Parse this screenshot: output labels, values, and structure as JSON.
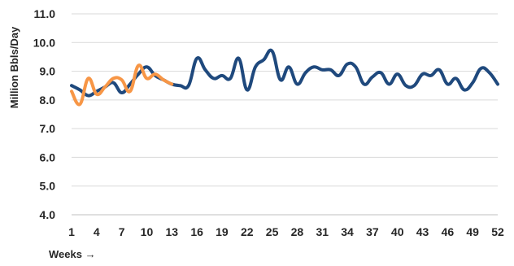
{
  "chart_data": {
    "type": "line",
    "xlabel": "Weeks →",
    "ylabel": "Million Bbls/Day",
    "ylim": [
      4.0,
      11.0
    ],
    "xlim": [
      1,
      52
    ],
    "y_ticks": [
      "4.0",
      "5.0",
      "6.0",
      "7.0",
      "8.0",
      "9.0",
      "10.0",
      "11.0"
    ],
    "x_ticks": [
      "1",
      "4",
      "7",
      "10",
      "13",
      "16",
      "19",
      "22",
      "25",
      "28",
      "31",
      "34",
      "37",
      "40",
      "43",
      "46",
      "49",
      "52"
    ],
    "grid": "horizontal",
    "legend": "none",
    "series": [
      {
        "color": "#1f497d",
        "x": [
          1,
          2,
          3,
          4,
          5,
          6,
          7,
          8,
          9,
          10,
          11,
          12,
          13,
          14,
          15,
          16,
          17,
          18,
          19,
          20,
          21,
          22,
          23,
          24,
          25,
          26,
          27,
          28,
          29,
          30,
          31,
          32,
          33,
          34,
          35,
          36,
          37,
          38,
          39,
          40,
          41,
          42,
          43,
          44,
          45,
          46,
          47,
          48,
          49,
          50,
          51,
          52
        ],
        "values": [
          8.5,
          8.35,
          8.15,
          8.3,
          8.45,
          8.6,
          8.25,
          8.55,
          8.9,
          9.15,
          8.85,
          8.7,
          8.55,
          8.5,
          8.5,
          9.45,
          9.05,
          8.75,
          8.85,
          8.75,
          9.45,
          8.35,
          9.15,
          9.4,
          9.7,
          8.7,
          9.15,
          8.55,
          8.95,
          9.15,
          9.05,
          9.05,
          8.85,
          9.25,
          9.15,
          8.55,
          8.8,
          8.95,
          8.55,
          8.9,
          8.5,
          8.5,
          8.9,
          8.85,
          9.05,
          8.55,
          8.75,
          8.35,
          8.6,
          9.1,
          8.95,
          8.55
        ]
      },
      {
        "color": "#f79646",
        "x": [
          1,
          2,
          3,
          4,
          5,
          6,
          7,
          8,
          9,
          10,
          11,
          12,
          13
        ],
        "values": [
          8.3,
          7.85,
          8.75,
          8.2,
          8.45,
          8.75,
          8.7,
          8.3,
          9.2,
          8.75,
          8.9,
          8.7,
          8.55
        ]
      }
    ]
  }
}
